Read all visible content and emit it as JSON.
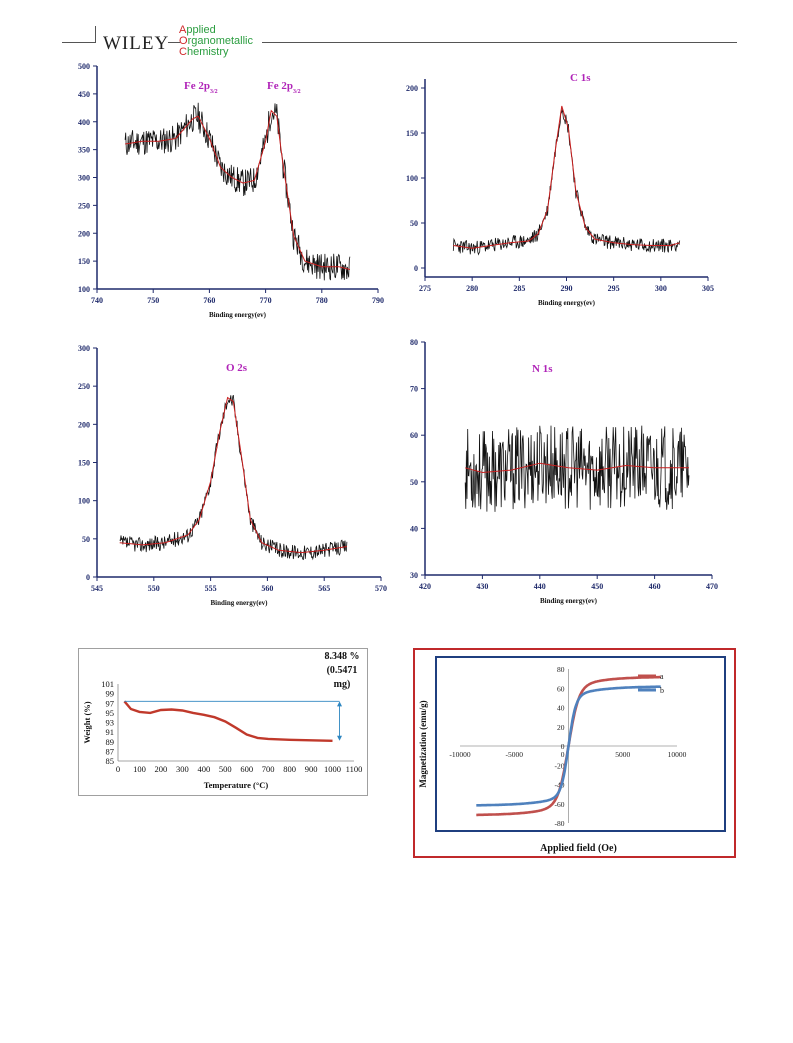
{
  "header": {
    "publisher": "WILEY",
    "journal_lines": [
      {
        "cap": "A",
        "rest": "pplied"
      },
      {
        "cap": "O",
        "rest": "rganometallic"
      },
      {
        "cap": "C",
        "rest": "hemistry"
      }
    ]
  },
  "colors": {
    "xps_axis": "#1f2a6b",
    "xps_spectrum": "#111111",
    "xps_fit": "#c81e1e",
    "xps_title": "#b024b8",
    "tga_curve": "#c0392b",
    "tga_arrow": "#2e86c1",
    "vsm_a": "#c0504d",
    "vsm_b": "#4f81bd",
    "vsm_outer_frame": "#c0292b",
    "vsm_inner_frame": "#1f3f7f"
  },
  "chart_data": [
    {
      "id": "fe2p",
      "type": "line",
      "peaks": [
        {
          "label": "Fe 2p",
          "sub": "3/2"
        },
        {
          "label": "Fe 2p",
          "sub": "3/2"
        }
      ],
      "xlabel": "Binding energy(ev)",
      "ylabel": "",
      "xlim": [
        740,
        790
      ],
      "ylim": [
        100,
        500
      ],
      "xticks": [
        740,
        750,
        760,
        770,
        780,
        790
      ],
      "yticks": [
        100,
        150,
        200,
        250,
        300,
        350,
        400,
        450,
        500
      ],
      "x": [
        745,
        748,
        751,
        754,
        757,
        758,
        760,
        762,
        764,
        766,
        768,
        770,
        771,
        772,
        773,
        775,
        777,
        780,
        783,
        785
      ],
      "y": [
        360,
        365,
        365,
        370,
        405,
        410,
        370,
        318,
        300,
        290,
        295,
        365,
        420,
        410,
        330,
        195,
        150,
        140,
        140,
        135
      ],
      "noise": 25
    },
    {
      "id": "c1s",
      "type": "line",
      "peaks": [
        {
          "label": "C 1s",
          "sub": ""
        }
      ],
      "xlabel": "Binding energy(ev)",
      "ylabel": "",
      "xlim": [
        275,
        305
      ],
      "ylim": [
        -10,
        210
      ],
      "xticks": [
        275,
        280,
        285,
        290,
        295,
        300,
        305
      ],
      "yticks": [
        0,
        50,
        100,
        150,
        200
      ],
      "x": [
        278,
        280,
        282,
        284,
        286,
        287,
        288,
        288.8,
        289.5,
        290.2,
        291,
        292,
        293,
        295,
        297,
        299,
        301,
        302
      ],
      "y": [
        25,
        22,
        25,
        28,
        30,
        38,
        65,
        130,
        180,
        155,
        85,
        45,
        32,
        28,
        26,
        25,
        25,
        28
      ],
      "noise": 8
    },
    {
      "id": "o2s",
      "type": "line",
      "peaks": [
        {
          "label": "O 2s",
          "sub": ""
        }
      ],
      "xlabel": "Binding energy(ev)",
      "ylabel": "",
      "xlim": [
        545,
        570
      ],
      "ylim": [
        0,
        300
      ],
      "xticks": [
        545,
        550,
        555,
        560,
        565,
        570
      ],
      "yticks": [
        0,
        50,
        100,
        150,
        200,
        250,
        300
      ],
      "x": [
        547,
        549,
        551,
        553,
        554,
        555,
        555.8,
        556.5,
        557,
        557.8,
        558.5,
        559.5,
        561,
        563,
        565,
        567
      ],
      "y": [
        45,
        42,
        45,
        55,
        75,
        125,
        190,
        235,
        230,
        150,
        75,
        45,
        35,
        32,
        35,
        40
      ],
      "noise": 10
    },
    {
      "id": "n1s",
      "type": "line",
      "peaks": [
        {
          "label": "N 1s",
          "sub": ""
        }
      ],
      "xlabel": "Binding energy(ev)",
      "ylabel": "",
      "xlim": [
        420,
        470
      ],
      "ylim": [
        30,
        80
      ],
      "xticks": [
        420,
        430,
        440,
        450,
        460,
        470
      ],
      "yticks": [
        30,
        40,
        50,
        60,
        70,
        80
      ],
      "x": [
        427,
        430,
        435,
        440,
        445,
        450,
        455,
        460,
        466
      ],
      "y": [
        53,
        52,
        52.5,
        54,
        53,
        52.5,
        53.5,
        53,
        53
      ],
      "noise": 9
    },
    {
      "id": "tga",
      "type": "line",
      "xlabel": "Temperature (°C)",
      "ylabel": "Weight (%)",
      "xlim": [
        0,
        1100
      ],
      "ylim": [
        85,
        101
      ],
      "xticks": [
        0,
        100,
        200,
        300,
        400,
        500,
        600,
        700,
        800,
        900,
        1000,
        1100
      ],
      "yticks": [
        85,
        87,
        89,
        91,
        93,
        95,
        97,
        99,
        101
      ],
      "x": [
        30,
        60,
        100,
        150,
        200,
        250,
        300,
        350,
        400,
        450,
        500,
        550,
        600,
        650,
        700,
        800,
        900,
        1000
      ],
      "y": [
        97.4,
        95.8,
        95.2,
        95.0,
        95.6,
        95.7,
        95.5,
        95.0,
        94.6,
        94.1,
        93.2,
        91.9,
        90.5,
        89.8,
        89.6,
        89.4,
        89.3,
        89.2
      ],
      "annotation": [
        "8.348 %",
        "(0.5471",
        "mg)"
      ]
    },
    {
      "id": "vsm",
      "type": "line",
      "xlabel": "Applied field (Oe)",
      "ylabel": "Magnetization (emu/g)",
      "xlim": [
        -10000,
        10000
      ],
      "ylim": [
        -80,
        80
      ],
      "xticks": [
        -10000,
        -5000,
        0,
        5000,
        10000
      ],
      "yticks": [
        -80,
        -60,
        -40,
        -20,
        0,
        20,
        40,
        60,
        80
      ],
      "series": [
        {
          "name": "a",
          "Ms": 72
        },
        {
          "name": "b",
          "Ms": 62
        }
      ],
      "x_extent": [
        -8500,
        8500
      ]
    }
  ]
}
